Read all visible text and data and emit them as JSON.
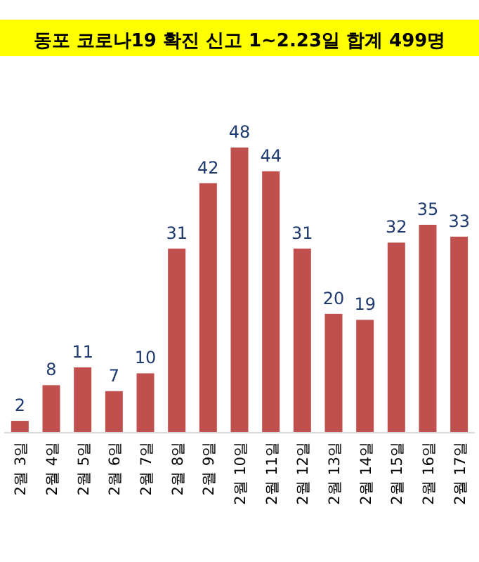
{
  "chart_data": {
    "type": "bar",
    "title": "동포 코로나19 확진 신고 1~2.23일 합계 499명",
    "categories": [
      "2월 3일",
      "2월 4일",
      "2월 5일",
      "2월 6일",
      "2월 7일",
      "2월 8일",
      "2월 9일",
      "2월 10일",
      "2월 11일",
      "2월 12일",
      "2월 13일",
      "2월 14일",
      "2월 15일",
      "2월 16일",
      "2월 17일"
    ],
    "values": [
      2,
      8,
      11,
      7,
      10,
      31,
      42,
      48,
      44,
      31,
      20,
      19,
      32,
      35,
      33
    ],
    "color": "#c0504d",
    "data_labels": true
  }
}
